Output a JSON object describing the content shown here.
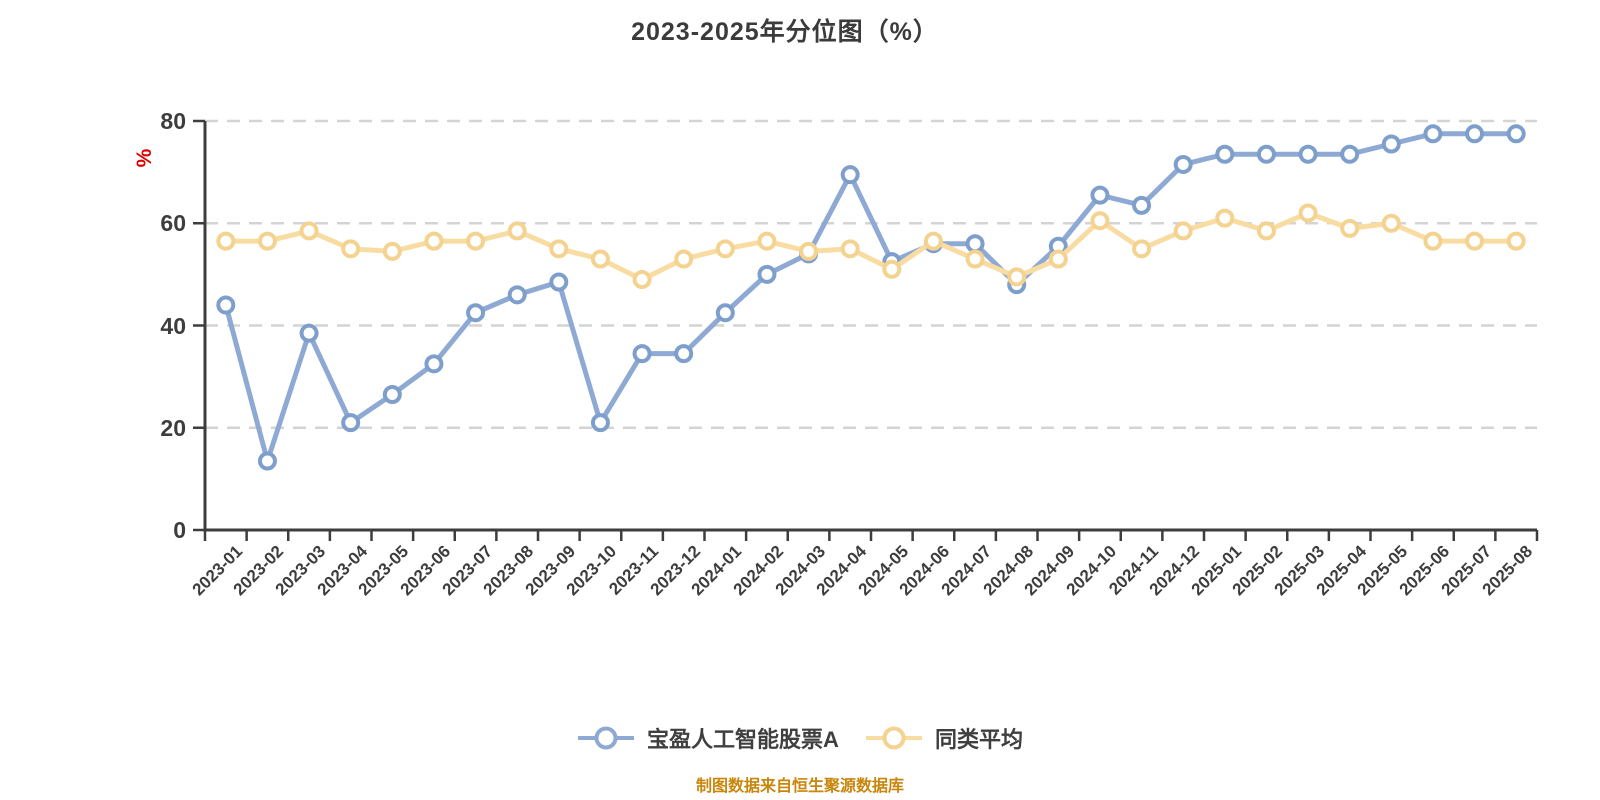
{
  "title": "2023-2025年分位图（%）",
  "y_axis_unit": "%",
  "footer": {
    "text": "制图数据来自恒生聚源数据库"
  },
  "colors": {
    "grid": "#d4d4d4",
    "axis": "#3d3d3d",
    "title_text": "#3b3b3b",
    "unit_red": "#de0000",
    "footer_orange": "#c8860d",
    "fund_line": "#8da9d4",
    "fund_marker": "#7e9ecc",
    "avg_line": "#f8dca2",
    "avg_marker": "#f4d28f",
    "marker_fill": "#ffffff"
  },
  "chart_data": {
    "type": "line",
    "title": "2023-2025年分位图（%）",
    "xlabel": "",
    "ylabel": "%",
    "ylim": [
      0,
      80
    ],
    "yticks": [
      0,
      20,
      40,
      60,
      80
    ],
    "grid": "horizontal-dashed",
    "legend_position": "bottom",
    "categories": [
      "2023-01",
      "2023-02",
      "2023-03",
      "2023-04",
      "2023-05",
      "2023-06",
      "2023-07",
      "2023-08",
      "2023-09",
      "2023-10",
      "2023-11",
      "2023-12",
      "2024-01",
      "2024-02",
      "2024-03",
      "2024-04",
      "2024-05",
      "2024-06",
      "2024-07",
      "2024-08",
      "2024-09",
      "2024-10",
      "2024-11",
      "2024-12",
      "2025-01",
      "2025-02",
      "2025-03",
      "2025-04",
      "2025-05",
      "2025-06",
      "2025-07",
      "2025-08"
    ],
    "series": [
      {
        "id": "fund",
        "name": "宝盈人工智能股票A",
        "color": "#8da9d4",
        "marker_stroke": "#7e9ecc",
        "values": [
          44,
          13.5,
          38.5,
          21,
          26.5,
          32.5,
          42.5,
          46,
          48.5,
          21,
          34.5,
          34.5,
          42.5,
          50,
          54,
          69.5,
          52.5,
          56,
          56,
          48,
          55.5,
          65.5,
          63.5,
          71.5,
          73.5,
          73.5,
          73.5,
          73.5,
          75.5,
          77.5,
          77.5,
          77.5
        ]
      },
      {
        "id": "average",
        "name": "同类平均",
        "color": "#f8dca2",
        "marker_stroke": "#f4d28f",
        "values": [
          56.5,
          56.5,
          58.5,
          55,
          54.5,
          56.5,
          56.5,
          58.5,
          55,
          53,
          49,
          53,
          55,
          56.5,
          54.5,
          55,
          51,
          56.5,
          53,
          49.5,
          53,
          60.5,
          55,
          58.5,
          61,
          58.5,
          62,
          59,
          60,
          56.5,
          56.5,
          56.5
        ]
      }
    ]
  }
}
